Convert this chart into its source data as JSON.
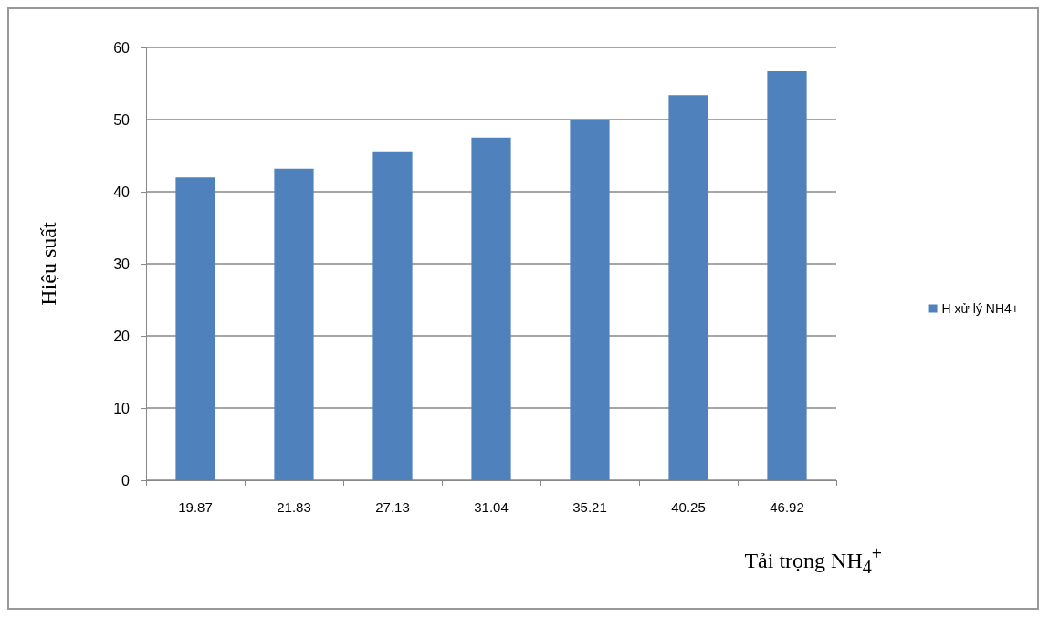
{
  "chart_data": {
    "type": "bar",
    "xlabel": "Tải trọng NH$_{4}$$^{+}$",
    "ylabel": "Hiệu suất",
    "categories": [
      "19.87",
      "21.83",
      "27.13",
      "31.04",
      "35.21",
      "40.25",
      "46.92"
    ],
    "series": [
      {
        "name": "H xử lý NH4+",
        "color": "#4f81bd",
        "values": [
          42.0,
          43.2,
          45.6,
          47.5,
          50.0,
          53.4,
          56.7
        ]
      }
    ],
    "ylim": [
      0,
      60
    ],
    "yticks": [
      0,
      10,
      20,
      30,
      40,
      50,
      60
    ],
    "grid": "y",
    "legend": "right"
  }
}
